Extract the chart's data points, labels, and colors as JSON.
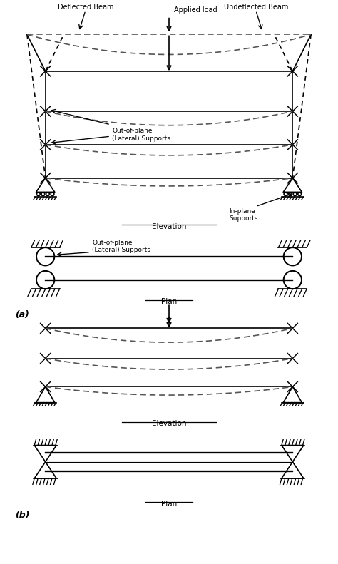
{
  "bg_color": "#ffffff",
  "line_color": "#000000",
  "dashed_color": "#555555",
  "text_color": "#000000",
  "fig_width": 4.74,
  "fig_height": 7.91,
  "labels": {
    "deflected_beam": "Deflected Beam",
    "undeflected_beam": "Undeflected Beam",
    "applied_load": "Applied load",
    "out_of_plane": "Out-of-plane\n(Lateral) Supports",
    "in_plane": "In-plane\nSupports",
    "elevation": "Elevation",
    "plan": "Plan",
    "a_label": "(a)",
    "b_label": "(b)"
  }
}
